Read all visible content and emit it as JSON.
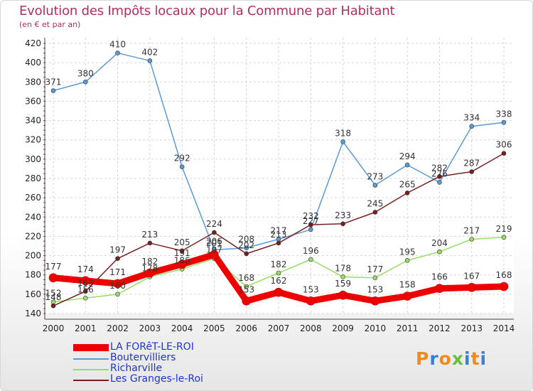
{
  "header": {
    "title": "Evolution des Impôts locaux pour la Commune par Habitant",
    "subtitle": "(en € et par an)"
  },
  "brand": {
    "letters": [
      "P",
      "r",
      "o",
      "x",
      "i",
      "t",
      "i"
    ],
    "colors": [
      "#f08a1c",
      "#3a7fd0",
      "#f08a1c",
      "#6bbf3a",
      "#3a7fd0",
      "#f08a1c",
      "#3a7fd0"
    ]
  },
  "chart_data": {
    "type": "line",
    "title": "Evolution des Impôts locaux pour la Commune par Habitant",
    "subtitle": "(en € et par an)",
    "xlabel": "",
    "ylabel": "",
    "x": [
      "2000",
      "2001",
      "2002",
      "2003",
      "2004",
      "2005",
      "2006",
      "2007",
      "2008",
      "2009",
      "2010",
      "2011",
      "2012",
      "2013",
      "2014"
    ],
    "ylim": [
      140,
      420
    ],
    "yticks": [
      140,
      160,
      180,
      200,
      220,
      240,
      260,
      280,
      300,
      320,
      340,
      360,
      380,
      400,
      420
    ],
    "grid": true,
    "legend_position": "bottom-left",
    "series": [
      {
        "name": "Boutervilliers",
        "color": "#5b9bd5",
        "values": [
          371,
          380,
          410,
          402,
          292,
          206,
          208,
          217,
          227,
          318,
          273,
          294,
          276,
          334,
          338
        ]
      },
      {
        "name": "Richarville",
        "color": "#99dd66",
        "values": [
          152,
          156,
          160,
          178,
          186,
          197,
          168,
          182,
          196,
          178,
          177,
          195,
          204,
          217,
          219
        ]
      },
      {
        "name": "Les Granges-le-Roi",
        "color": "#7a1f1f",
        "values": [
          148,
          163,
          197,
          213,
          205,
          224,
          202,
          213,
          232,
          233,
          245,
          265,
          282,
          287,
          306
        ]
      },
      {
        "name": "LA FORêT-LE-ROI",
        "color": "#ee0000",
        "values": [
          177,
          174,
          171,
          182,
          191,
          201,
          153,
          162,
          153,
          159,
          153,
          158,
          166,
          167,
          168
        ]
      }
    ]
  }
}
